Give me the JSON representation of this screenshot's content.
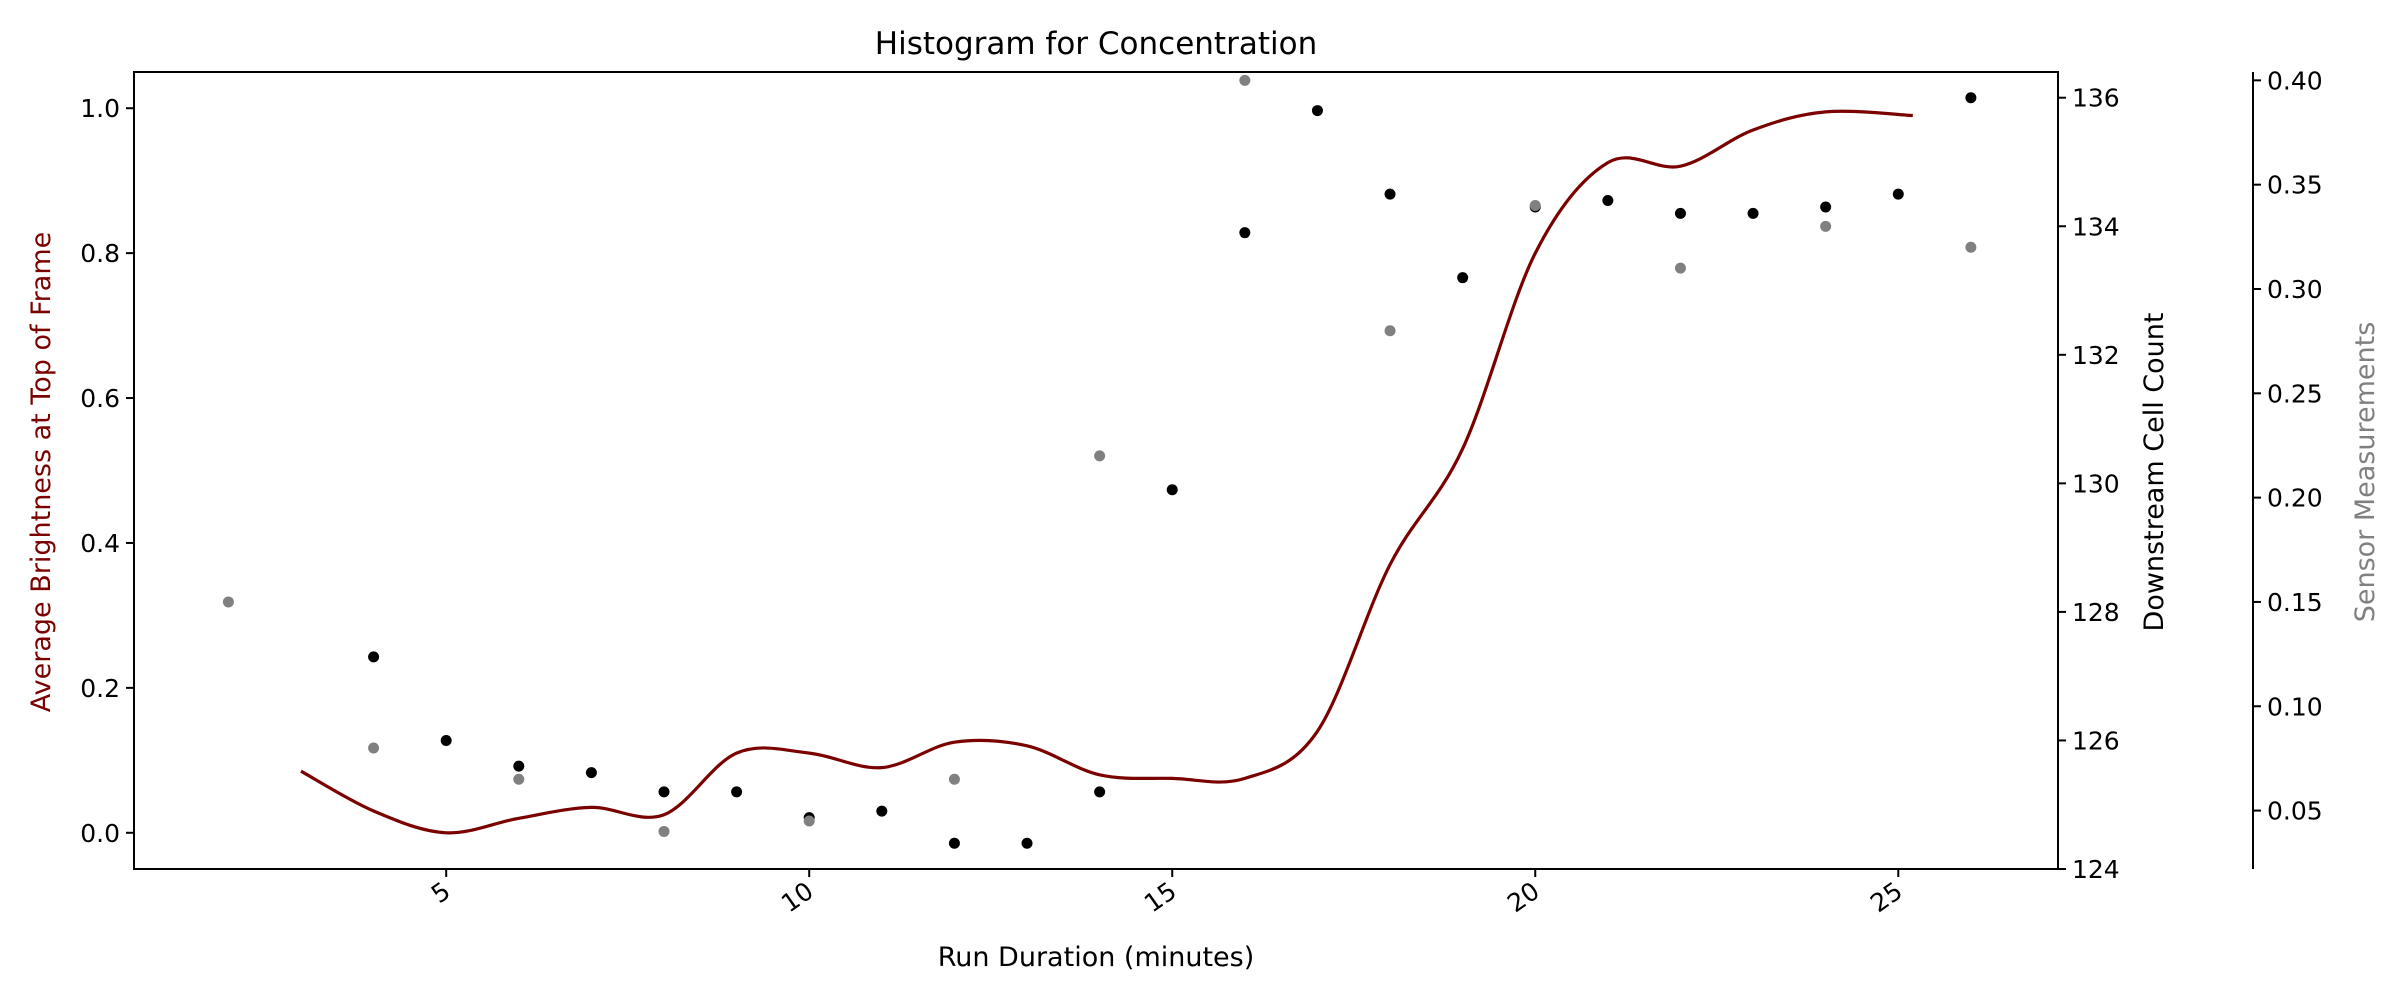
{
  "chart_data": {
    "type": "scatter",
    "title": "Histogram for Concentration",
    "xlabel": "Run Duration (minutes)",
    "xlim": [
      0.7,
      27.2
    ],
    "xticks": [
      5,
      10,
      15,
      20,
      25
    ],
    "axes": {
      "left": {
        "label": "Average Brightness at Top of Frame",
        "color": "#7b0000",
        "ylim": [
          -0.05,
          1.05
        ],
        "ticks": [
          0.0,
          0.2,
          0.4,
          0.6,
          0.8,
          1.0
        ],
        "tick_format": "0.1"
      },
      "right": {
        "label": "Downstream Cell Count",
        "color": "#000000",
        "ylim": [
          124.0,
          136.4
        ],
        "ticks": [
          124,
          126,
          128,
          130,
          132,
          134,
          136
        ],
        "tick_format": "int"
      },
      "outer": {
        "label": "Sensor Measurements",
        "color": "#808080",
        "ylim": [
          0.022,
          0.404
        ],
        "ticks": [
          0.05,
          0.1,
          0.15,
          0.2,
          0.25,
          0.3,
          0.35,
          0.4
        ],
        "tick_format": "0.01"
      }
    },
    "series": [
      {
        "kind": "line",
        "axis": "left",
        "color": "#7b0000",
        "x": [
          3,
          4,
          5,
          6,
          7,
          8,
          9,
          10,
          11,
          12,
          13,
          14,
          15,
          16,
          17,
          18,
          19,
          20,
          21,
          22,
          23,
          24,
          25.2
        ],
        "y": [
          0.085,
          0.03,
          0.0,
          0.02,
          0.035,
          0.025,
          0.11,
          0.11,
          0.09,
          0.125,
          0.12,
          0.08,
          0.075,
          0.075,
          0.14,
          0.37,
          0.53,
          0.8,
          0.925,
          0.92,
          0.97,
          0.995,
          0.99
        ]
      },
      {
        "kind": "scatter",
        "axis": "right",
        "color": "#000000",
        "x": [
          4,
          5,
          6,
          7,
          8,
          9,
          10,
          11,
          12,
          13,
          14,
          15,
          16,
          17,
          18,
          19,
          20,
          21,
          22,
          23,
          24,
          25,
          26
        ],
        "y": [
          127.3,
          126.0,
          125.6,
          125.5,
          125.2,
          125.2,
          124.8,
          124.9,
          124.4,
          124.4,
          125.2,
          129.9,
          133.9,
          135.8,
          134.5,
          133.2,
          134.3,
          134.4,
          134.2,
          134.2,
          134.3,
          134.5,
          136.0
        ]
      },
      {
        "kind": "scatter",
        "axis": "outer",
        "color": "#808080",
        "x": [
          2,
          4,
          6,
          8,
          10,
          12,
          14,
          16,
          18,
          20,
          22,
          24,
          26
        ],
        "y": [
          0.15,
          0.08,
          0.065,
          0.04,
          0.045,
          0.065,
          0.22,
          0.4,
          0.28,
          0.34,
          0.31,
          0.33,
          0.32
        ]
      }
    ]
  }
}
